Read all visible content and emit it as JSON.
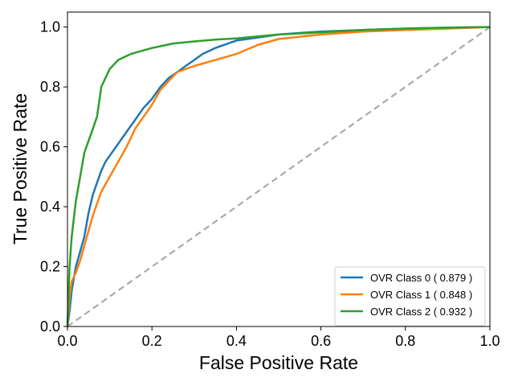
{
  "chart_data": {
    "type": "line",
    "xlabel": "False Positive Rate",
    "ylabel": "True Positive Rate",
    "xlim": [
      0,
      1
    ],
    "ylim": [
      0,
      1.05
    ],
    "xticks": [
      "0.0",
      "0.2",
      "0.4",
      "0.6",
      "0.8",
      "1.0"
    ],
    "yticks": [
      "0.0",
      "0.2",
      "0.4",
      "0.6",
      "0.8",
      "1.0"
    ],
    "grid": false,
    "legend_position": "lower-right",
    "baseline": {
      "x": [
        0,
        1
      ],
      "y": [
        0,
        1
      ],
      "color": "#aaaaaa",
      "style": "dashed"
    },
    "series": [
      {
        "name": "OVR Class 0 ( 0.879 )",
        "color": "#1f77b4",
        "x": [
          0,
          0.005,
          0.01,
          0.02,
          0.03,
          0.04,
          0.05,
          0.06,
          0.07,
          0.08,
          0.09,
          0.1,
          0.12,
          0.14,
          0.16,
          0.18,
          0.2,
          0.22,
          0.24,
          0.26,
          0.28,
          0.3,
          0.32,
          0.35,
          0.4,
          0.45,
          0.5,
          0.6,
          0.7,
          0.8,
          0.9,
          1.0
        ],
        "y": [
          0,
          0.05,
          0.12,
          0.2,
          0.25,
          0.3,
          0.38,
          0.44,
          0.48,
          0.52,
          0.55,
          0.57,
          0.61,
          0.65,
          0.69,
          0.73,
          0.76,
          0.8,
          0.83,
          0.85,
          0.87,
          0.89,
          0.91,
          0.93,
          0.955,
          0.965,
          0.975,
          0.985,
          0.99,
          0.995,
          0.998,
          1.0
        ]
      },
      {
        "name": "OVR Class 1 ( 0.848 )",
        "color": "#ff7f0e",
        "x": [
          0,
          0.005,
          0.01,
          0.02,
          0.03,
          0.04,
          0.05,
          0.06,
          0.07,
          0.08,
          0.1,
          0.12,
          0.14,
          0.16,
          0.18,
          0.2,
          0.22,
          0.24,
          0.26,
          0.28,
          0.3,
          0.35,
          0.4,
          0.45,
          0.5,
          0.6,
          0.7,
          0.8,
          0.9,
          1.0
        ],
        "y": [
          0,
          0.1,
          0.15,
          0.18,
          0.22,
          0.27,
          0.32,
          0.37,
          0.41,
          0.45,
          0.5,
          0.55,
          0.6,
          0.66,
          0.7,
          0.74,
          0.79,
          0.82,
          0.85,
          0.86,
          0.87,
          0.89,
          0.91,
          0.94,
          0.96,
          0.975,
          0.985,
          0.99,
          0.995,
          1.0
        ]
      },
      {
        "name": "OVR Class 2 ( 0.932 )",
        "color": "#2ca02c",
        "x": [
          0,
          0.005,
          0.01,
          0.02,
          0.03,
          0.04,
          0.05,
          0.06,
          0.07,
          0.08,
          0.1,
          0.12,
          0.15,
          0.2,
          0.25,
          0.3,
          0.35,
          0.4,
          0.5,
          0.6,
          0.7,
          0.8,
          0.9,
          1.0
        ],
        "y": [
          0,
          0.2,
          0.3,
          0.42,
          0.5,
          0.58,
          0.62,
          0.66,
          0.7,
          0.8,
          0.86,
          0.89,
          0.91,
          0.93,
          0.945,
          0.952,
          0.958,
          0.962,
          0.975,
          0.982,
          0.99,
          0.995,
          0.998,
          1.0
        ]
      }
    ]
  }
}
